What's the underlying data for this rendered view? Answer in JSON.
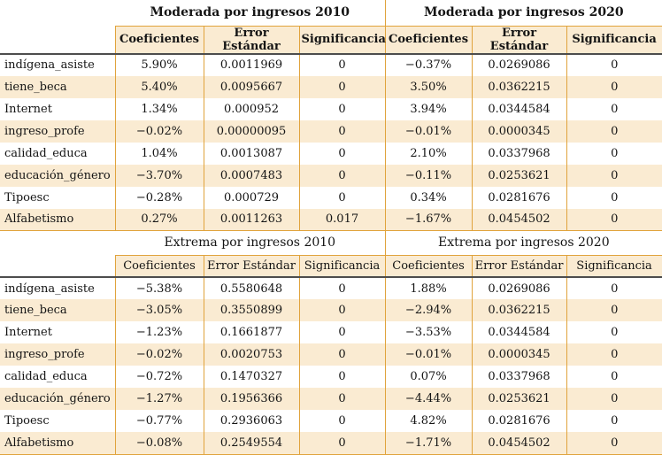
{
  "colors": {
    "background": "#ffffff",
    "stripe_fill": "#faebd2",
    "header_fill": "#faebd2",
    "gold_border": "#e0a33c",
    "dark_rule": "#4d4d4d",
    "text": "#141414"
  },
  "tables": [
    {
      "name": "moderada",
      "groups": [
        {
          "title": "Moderada por ingresos 2010"
        },
        {
          "title": "Moderada por ingresos 2020"
        }
      ],
      "columns": [
        "Coeficientes",
        "Error Estándar",
        "Significancia",
        "Coeficientes",
        "Error Estándar",
        "Significancia"
      ],
      "rows": [
        {
          "label": "indígena_asiste",
          "cells": [
            "5.90%",
            "0.0011969",
            "0",
            "−0.37%",
            "0.0269086",
            "0"
          ]
        },
        {
          "label": "tiene_beca",
          "cells": [
            "5.40%",
            "0.0095667",
            "0",
            "3.50%",
            "0.0362215",
            "0"
          ]
        },
        {
          "label": "Internet",
          "cells": [
            "1.34%",
            "0.000952",
            "0",
            "3.94%",
            "0.0344584",
            "0"
          ]
        },
        {
          "label": "ingreso_profe",
          "cells": [
            "−0.02%",
            "0.00000095",
            "0",
            "−0.01%",
            "0.0000345",
            "0"
          ]
        },
        {
          "label": "calidad_educa",
          "cells": [
            "1.04%",
            "0.0013087",
            "0",
            "2.10%",
            "0.0337968",
            "0"
          ]
        },
        {
          "label": "educación_género",
          "cells": [
            "−3.70%",
            "0.0007483",
            "0",
            "−0.11%",
            "0.0253621",
            "0"
          ]
        },
        {
          "label": "Tipoesc",
          "cells": [
            "−0.28%",
            "0.000729",
            "0",
            "0.34%",
            "0.0281676",
            "0"
          ]
        },
        {
          "label": "Alfabetismo",
          "cells": [
            "0.27%",
            "0.0011263",
            "0.017",
            "−1.67%",
            "0.0454502",
            "0"
          ]
        }
      ]
    },
    {
      "name": "extrema",
      "groups": [
        {
          "title": "Extrema por ingresos 2010"
        },
        {
          "title": "Extrema por ingresos 2020"
        }
      ],
      "columns": [
        "Coeficientes",
        "Error Estándar",
        "Significancia",
        "Coeficientes",
        "Error Estándar",
        "Significancia"
      ],
      "rows": [
        {
          "label": "indígena_asiste",
          "cells": [
            "−5.38%",
            "0.5580648",
            "0",
            "1.88%",
            "0.0269086",
            "0"
          ]
        },
        {
          "label": "tiene_beca",
          "cells": [
            "−3.05%",
            "0.3550899",
            "0",
            "−2.94%",
            "0.0362215",
            "0"
          ]
        },
        {
          "label": "Internet",
          "cells": [
            "−1.23%",
            "0.1661877",
            "0",
            "−3.53%",
            "0.0344584",
            "0"
          ]
        },
        {
          "label": "ingreso_profe",
          "cells": [
            "−0.02%",
            "0.0020753",
            "0",
            "−0.01%",
            "0.0000345",
            "0"
          ]
        },
        {
          "label": "calidad_educa",
          "cells": [
            "−0.72%",
            "0.1470327",
            "0",
            "0.07%",
            "0.0337968",
            "0"
          ]
        },
        {
          "label": "educación_género",
          "cells": [
            "−1.27%",
            "0.1956366",
            "0",
            "−4.44%",
            "0.0253621",
            "0"
          ]
        },
        {
          "label": "Tipoesc",
          "cells": [
            "−0.77%",
            "0.2936063",
            "0",
            "4.82%",
            "0.0281676",
            "0"
          ]
        },
        {
          "label": "Alfabetismo",
          "cells": [
            "−0.08%",
            "0.2549554",
            "0",
            "−1.71%",
            "0.0454502",
            "0"
          ]
        }
      ]
    }
  ]
}
